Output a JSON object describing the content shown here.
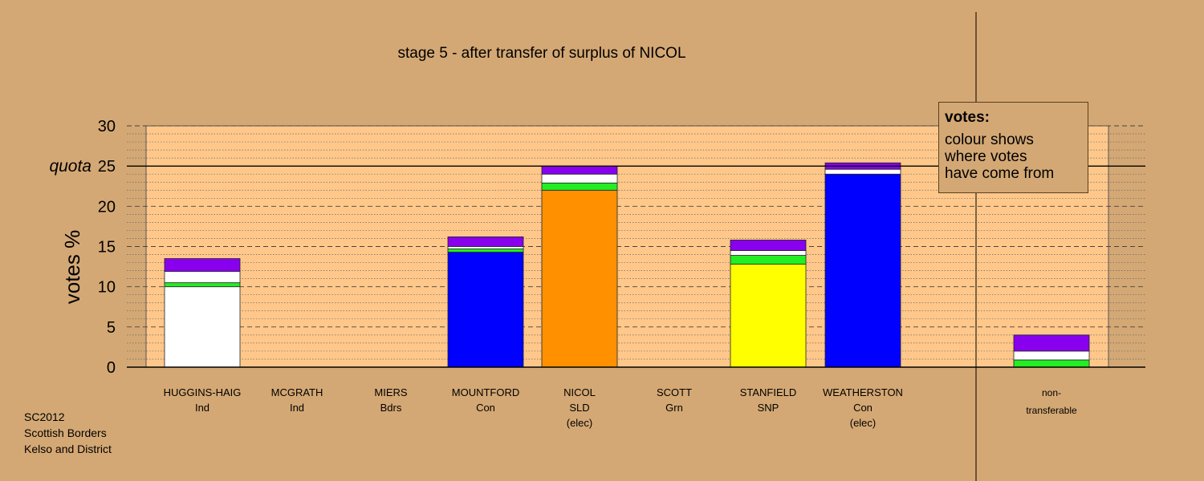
{
  "colors": {
    "background": "#d4a874",
    "plot_bg": "#ffc88a",
    "white": "#ffffff",
    "green": "#22ee22",
    "purple": "#8800ee",
    "blue": "#0000ff",
    "orange": "#ff9100",
    "yellow": "#ffff00"
  },
  "labels": {
    "quota": "quota"
  },
  "source": {
    "line1": "SC2012",
    "line2": "Scottish Borders",
    "line3": "Kelso and District"
  },
  "legend": {
    "title": "votes:",
    "line1": "colour shows",
    "line2": "where votes",
    "line3": "have come from"
  },
  "candidates": [
    {
      "name": "HUGGINS-HAIG",
      "party": "Ind",
      "note": ""
    },
    {
      "name": "MCGRATH",
      "party": "Ind",
      "note": ""
    },
    {
      "name": "MIERS",
      "party": "Bdrs",
      "note": ""
    },
    {
      "name": "MOUNTFORD",
      "party": "Con",
      "note": ""
    },
    {
      "name": "NICOL",
      "party": "SLD",
      "note": "(elec)"
    },
    {
      "name": "SCOTT",
      "party": "Grn",
      "note": ""
    },
    {
      "name": "STANFIELD",
      "party": "SNP",
      "note": ""
    },
    {
      "name": "WEATHERSTON",
      "party": "Con",
      "note": "(elec)"
    }
  ],
  "nontransferable": {
    "line1": "non-",
    "line2": "transferable"
  },
  "chart_data": {
    "type": "bar",
    "stacked": true,
    "title": "stage 5 - after transfer of surplus of NICOL",
    "ylabel": "votes %",
    "ylim": [
      0,
      30
    ],
    "yticks": [
      0,
      5,
      10,
      15,
      20,
      25,
      30
    ],
    "quota": 25,
    "grid": true,
    "categories": [
      "HUGGINS-HAIG",
      "MCGRATH",
      "MIERS",
      "MOUNTFORD",
      "NICOL",
      "SCOTT",
      "STANFIELD",
      "WEATHERSTON",
      "non-transferable"
    ],
    "bars": [
      [
        {
          "color": "white",
          "value": 10.0
        },
        {
          "color": "green",
          "value": 0.5
        },
        {
          "color": "white",
          "value": 1.4
        },
        {
          "color": "purple",
          "value": 1.6
        }
      ],
      [],
      [],
      [
        {
          "color": "blue",
          "value": 14.3
        },
        {
          "color": "green",
          "value": 0.4
        },
        {
          "color": "white",
          "value": 0.3
        },
        {
          "color": "purple",
          "value": 1.2
        }
      ],
      [
        {
          "color": "orange",
          "value": 22.0
        },
        {
          "color": "green",
          "value": 0.9
        },
        {
          "color": "white",
          "value": 1.1
        },
        {
          "color": "purple",
          "value": 1.0
        }
      ],
      [],
      [
        {
          "color": "yellow",
          "value": 12.8
        },
        {
          "color": "green",
          "value": 1.1
        },
        {
          "color": "white",
          "value": 0.6
        },
        {
          "color": "purple",
          "value": 1.3
        }
      ],
      [
        {
          "color": "blue",
          "value": 24.0
        },
        {
          "color": "white",
          "value": 0.6
        },
        {
          "color": "purple",
          "value": 0.8
        }
      ],
      [
        {
          "color": "green",
          "value": 0.9
        },
        {
          "color": "white",
          "value": 1.1
        },
        {
          "color": "purple",
          "value": 2.0
        }
      ]
    ]
  }
}
